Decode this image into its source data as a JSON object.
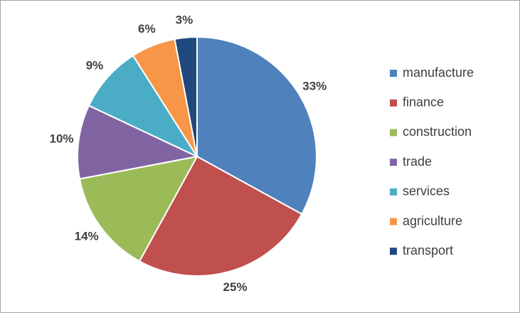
{
  "chart_data": {
    "type": "pie",
    "categories": [
      "manufacture",
      "finance",
      "construction",
      "trade",
      "services",
      "agriculture",
      "transport"
    ],
    "values": [
      33,
      25,
      14,
      10,
      9,
      6,
      3
    ],
    "value_labels": [
      "33%",
      "25%",
      "14%",
      "10%",
      "9%",
      "6%",
      "3%"
    ],
    "colors": [
      "#4f81bd",
      "#c0504d",
      "#9bbb59",
      "#8064a2",
      "#4bacc6",
      "#f79646",
      "#1f497d"
    ],
    "legend": "right"
  }
}
